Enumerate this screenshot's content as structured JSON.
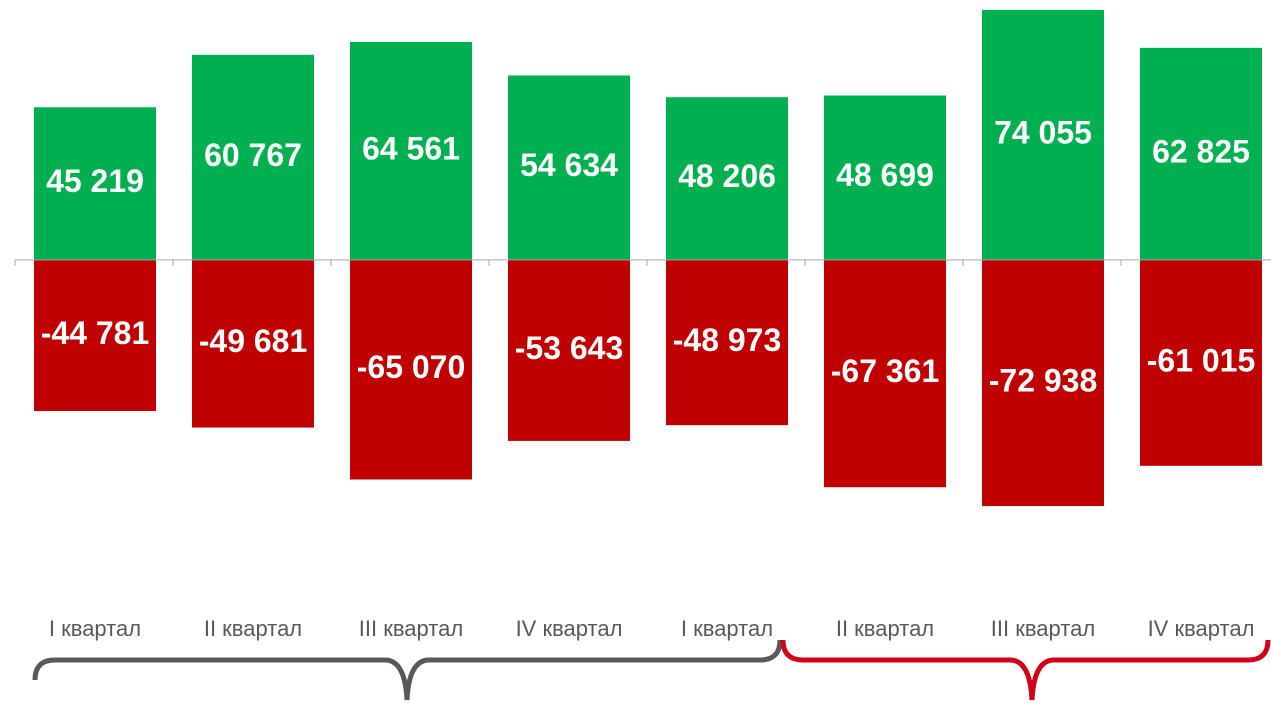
{
  "chart_data": {
    "type": "bar",
    "categories": [
      "I квартал",
      "II квартал",
      "III квартал",
      "IV квартал",
      "I квартал",
      "II квартал",
      "III квартал",
      "IV квартал"
    ],
    "series": [
      {
        "color": "#00b050",
        "values": [
          45219,
          60767,
          64561,
          54634,
          48206,
          48699,
          74055,
          62825
        ],
        "value_labels": [
          "45 219",
          "60 767",
          "64 561",
          "54 634",
          "48 206",
          "48 699",
          "74 055",
          "62 825"
        ]
      },
      {
        "color": "#c00000",
        "values": [
          -44781,
          -49681,
          -65070,
          -53643,
          -48973,
          -67361,
          -72938,
          -61015
        ],
        "value_labels": [
          "-44 781",
          "-49 681",
          "-65 070",
          "-53 643",
          "-48 973",
          "-67 361",
          "-72 938",
          "-61 015"
        ]
      }
    ],
    "ylim": [
      -75000,
      77000
    ]
  }
}
